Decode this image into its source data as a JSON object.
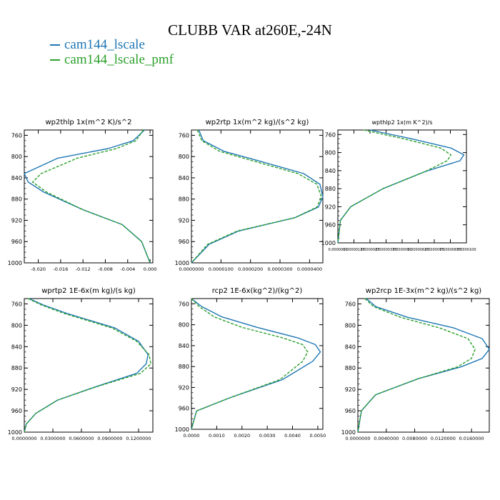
{
  "title": "CLUBB VAR at260E,-24N",
  "legend": [
    {
      "name": "cam144_lscale",
      "color": "#1f77b4"
    },
    {
      "name": "cam144_lscale_pmf",
      "color": "#2ca02c"
    }
  ],
  "chart_data": [
    {
      "type": "line",
      "title": "wp2thlp  1x(m^2 K)/s^2",
      "xlim": [
        -0.0225,
        0.0005
      ],
      "xticks": [
        -0.02,
        -0.016,
        -0.012,
        -0.008,
        -0.004,
        0.0
      ],
      "xtick_labels": [
        "-0.020",
        "-0.016",
        "-0.012",
        "-0.008",
        "-0.004",
        "0.000"
      ],
      "ylim": [
        1000,
        750
      ],
      "yticks": [
        760,
        800,
        840,
        880,
        920,
        960,
        1000
      ],
      "series": [
        {
          "name": "cam144_lscale",
          "x": [
            -0.001,
            -0.003,
            -0.0075,
            -0.0165,
            -0.0225,
            -0.0218,
            -0.019,
            -0.012,
            -0.005,
            -0.0015,
            0.0
          ],
          "y": [
            750,
            770,
            785,
            803,
            832,
            848,
            867,
            900,
            928,
            960,
            1000
          ]
        },
        {
          "name": "cam144_lscale_pmf",
          "x": [
            -0.0012,
            -0.0025,
            -0.006,
            -0.013,
            -0.0195,
            -0.021,
            -0.0185,
            -0.012,
            -0.005,
            -0.0015,
            0.0
          ],
          "y": [
            750,
            770,
            785,
            803,
            832,
            848,
            867,
            900,
            928,
            960,
            1000
          ]
        }
      ]
    },
    {
      "type": "line",
      "title": "wp2rtp  1x(m^2 kg)/(s^2 kg)",
      "xlim": [
        0.0,
        4.45e-05
      ],
      "xticks": [
        0.0,
        1e-05,
        2e-05,
        3e-05,
        4e-05
      ],
      "xtick_labels": [
        "0.0000000",
        "0.0000100",
        "0.0000200",
        "0.0000300",
        "0.0000400"
      ],
      "ylim": [
        1000,
        750
      ],
      "yticks": [
        760,
        800,
        840,
        880,
        920,
        960,
        1000
      ],
      "series": [
        {
          "name": "cam144_lscale",
          "x": [
            2.5e-06,
            4e-06,
            1.1e-05,
            2.4e-05,
            3.8e-05,
            4.35e-05,
            4.45e-05,
            4.3e-05,
            3.5e-05,
            1.6e-05,
            6e-06,
            0.0
          ],
          "y": [
            750,
            770,
            790,
            810,
            832,
            852,
            876,
            895,
            915,
            940,
            965,
            1000
          ]
        },
        {
          "name": "cam144_lscale_pmf",
          "x": [
            2e-06,
            3.5e-06,
            9.5e-06,
            2.2e-05,
            3.6e-05,
            4.25e-05,
            4.4e-05,
            4.25e-05,
            3.5e-05,
            1.55e-05,
            5.5e-06,
            0.0
          ],
          "y": [
            750,
            770,
            790,
            810,
            832,
            852,
            876,
            895,
            915,
            940,
            965,
            1000
          ]
        }
      ]
    },
    {
      "type": "line",
      "title": "wpthlp2  1x(m K^2)/s",
      "xlim": [
        0.0,
        1e-05
      ],
      "xticks": [
        0.0,
        1.25e-06,
        2.5e-06,
        3.75e-06,
        5e-06,
        6.25e-06,
        7.5e-06,
        8.75e-06,
        1e-05
      ],
      "xtick_labels": [
        "0.0000000",
        "0.00000125",
        "0.0000025",
        "0.00000375",
        "0.0000050",
        "0.00000625",
        "0.0000075",
        "0.00000875",
        "0.0000100"
      ],
      "ylim": [
        1000,
        750
      ],
      "yticks": [
        760,
        800,
        840,
        880,
        920,
        960,
        1000
      ],
      "series": [
        {
          "name": "cam144_lscale",
          "x": [
            2.5e-06,
            5.8e-06,
            8.8e-06,
            9.8e-06,
            9.5e-06,
            6.8e-06,
            3.5e-06,
            1e-06,
            2e-07,
            0.0
          ],
          "y": [
            750,
            770,
            790,
            805,
            818,
            842,
            880,
            920,
            950,
            1000
          ]
        },
        {
          "name": "cam144_lscale_pmf",
          "x": [
            2e-06,
            5.2e-06,
            8e-06,
            8.8e-06,
            8.5e-06,
            6.8e-06,
            3.5e-06,
            1e-06,
            2e-07,
            0.0
          ],
          "y": [
            750,
            770,
            790,
            805,
            818,
            842,
            880,
            920,
            950,
            1000
          ]
        }
      ]
    },
    {
      "type": "line",
      "title": "wprtp2  1E-6x(m kg)/(s kg)",
      "xlim": [
        0.0,
        0.135
      ],
      "xticks": [
        0.0,
        0.03,
        0.06,
        0.09,
        0.12
      ],
      "xtick_labels": [
        "0.0000000",
        "0.0300000",
        "0.0600000",
        "0.0900000",
        "0.1200000"
      ],
      "ylim": [
        1000,
        750
      ],
      "yticks": [
        760,
        800,
        840,
        880,
        920,
        960,
        1000
      ],
      "series": [
        {
          "name": "cam144_lscale",
          "x": [
            0.005,
            0.02,
            0.045,
            0.095,
            0.12,
            0.13,
            0.128,
            0.118,
            0.075,
            0.035,
            0.012,
            0.002,
            0.0
          ],
          "y": [
            750,
            762,
            778,
            805,
            830,
            855,
            872,
            890,
            915,
            940,
            965,
            985,
            1000
          ]
        },
        {
          "name": "cam144_lscale_pmf",
          "x": [
            0.004,
            0.018,
            0.042,
            0.092,
            0.118,
            0.131,
            0.133,
            0.122,
            0.076,
            0.035,
            0.012,
            0.002,
            0.0
          ],
          "y": [
            750,
            762,
            778,
            805,
            830,
            855,
            872,
            890,
            915,
            940,
            965,
            985,
            1000
          ]
        }
      ]
    },
    {
      "type": "line",
      "title": "rcp2  1E-6x(kg^2)/(kg^2)",
      "xlim": [
        0.0,
        0.0052
      ],
      "xticks": [
        0.0,
        0.001,
        0.002,
        0.003,
        0.004,
        0.005
      ],
      "xtick_labels": [
        "0.0000",
        "0.0010",
        "0.0020",
        "0.0030",
        "0.0040",
        "0.0050"
      ],
      "ylim": [
        1000,
        750
      ],
      "yticks": [
        760,
        800,
        840,
        880,
        920,
        960,
        1000
      ],
      "series": [
        {
          "name": "cam144_lscale",
          "x": [
            0.0,
            0.0004,
            0.0012,
            0.0026,
            0.0042,
            0.0049,
            0.0051,
            0.0048,
            0.0036,
            0.0015,
            0.0002,
            0.0
          ],
          "y": [
            750,
            765,
            785,
            805,
            825,
            838,
            852,
            870,
            905,
            940,
            965,
            1000
          ]
        },
        {
          "name": "cam144_lscale_pmf",
          "x": [
            0.0,
            0.0003,
            0.0009,
            0.002,
            0.0036,
            0.0044,
            0.0046,
            0.0044,
            0.0035,
            0.0015,
            0.0002,
            0.0
          ],
          "y": [
            750,
            765,
            785,
            805,
            825,
            838,
            852,
            870,
            905,
            940,
            965,
            1000
          ]
        }
      ]
    },
    {
      "type": "line",
      "title": "wp2rcp  1E-3x(m^2 kg)/(s^2 kg)",
      "xlim": [
        0.0,
        0.0185
      ],
      "xticks": [
        0.0,
        0.004,
        0.008,
        0.012,
        0.016
      ],
      "xtick_labels": [
        "0.0000000",
        "0.0040000",
        "0.0080000",
        "0.0120000",
        "0.0160000"
      ],
      "ylim": [
        1000,
        750
      ],
      "yticks": [
        760,
        800,
        840,
        880,
        920,
        960,
        1000
      ],
      "series": [
        {
          "name": "cam144_lscale",
          "x": [
            0.0012,
            0.0025,
            0.007,
            0.0135,
            0.0175,
            0.0185,
            0.0175,
            0.0145,
            0.0085,
            0.0025,
            0.0005,
            0.0
          ],
          "y": [
            750,
            765,
            785,
            805,
            825,
            845,
            862,
            878,
            900,
            930,
            960,
            1000
          ]
        },
        {
          "name": "cam144_lscale_pmf",
          "x": [
            0.001,
            0.0022,
            0.006,
            0.0115,
            0.0155,
            0.0165,
            0.016,
            0.014,
            0.0085,
            0.0025,
            0.0005,
            0.0
          ],
          "y": [
            750,
            765,
            785,
            805,
            825,
            845,
            862,
            878,
            900,
            930,
            960,
            1000
          ]
        }
      ]
    }
  ]
}
